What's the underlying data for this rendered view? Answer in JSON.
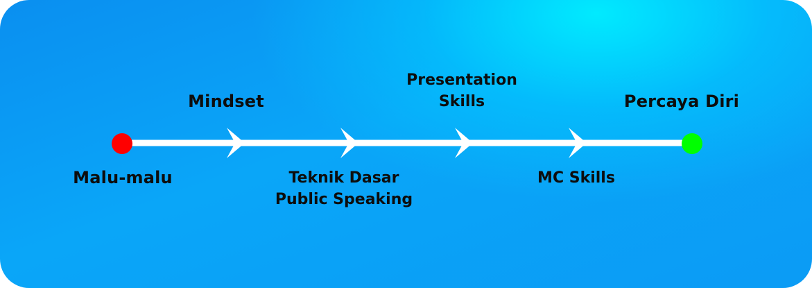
{
  "timeline": {
    "start": {
      "label": "Malu-malu",
      "color": "#ff0000"
    },
    "end": {
      "label": "Percaya Diri",
      "color": "#00ff00"
    },
    "line_color": "#ffffff",
    "steps": [
      {
        "label": "Mindset",
        "position": "above"
      },
      {
        "label_lines": [
          "Teknik Dasar",
          "Public Speaking"
        ],
        "position": "below"
      },
      {
        "label_lines": [
          "Presentation",
          "Skills"
        ],
        "position": "above"
      },
      {
        "label": "MC Skills",
        "position": "below"
      }
    ]
  }
}
